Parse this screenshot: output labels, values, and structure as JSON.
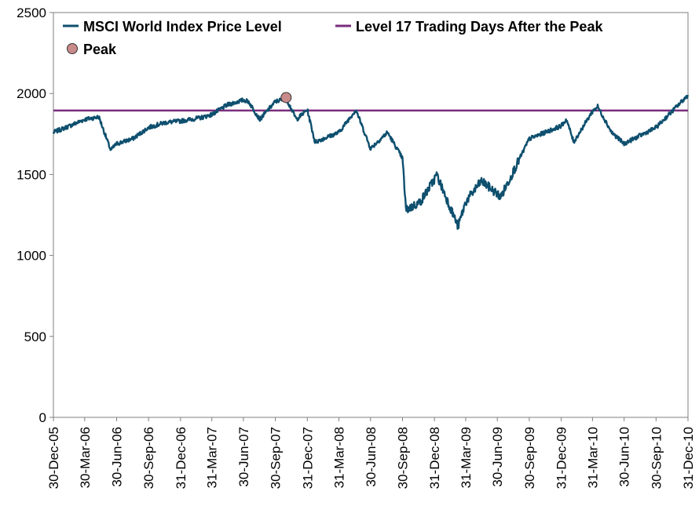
{
  "chart_data": {
    "type": "line",
    "title": "",
    "xlabel": "",
    "ylabel": "",
    "ylim": [
      0,
      2500
    ],
    "yticks": [
      0,
      500,
      1000,
      1500,
      2000,
      2500
    ],
    "x_ticks": [
      "30-Dec-05",
      "30-Mar-06",
      "30-Jun-06",
      "30-Sep-06",
      "31-Dec-06",
      "31-Mar-07",
      "30-Jun-07",
      "30-Sep-07",
      "31-Dec-07",
      "31-Mar-08",
      "30-Jun-08",
      "30-Sep-08",
      "31-Dec-08",
      "31-Mar-09",
      "30-Jun-09",
      "30-Sep-09",
      "31-Dec-09",
      "31-Mar-10",
      "30-Jun-10",
      "30-Sep-10",
      "31-Dec-10"
    ],
    "grid": false,
    "legend_position": "top-left",
    "colors": {
      "index": "#0e4f6e",
      "level": "#7a2e7e",
      "peak": "#c98a8a"
    },
    "series": [
      {
        "name": "MSCI World Index Price Level",
        "type": "line",
        "x": [
          "30-Dec-05",
          "15-Feb-06",
          "30-Mar-06",
          "10-May-06",
          "13-Jun-06",
          "30-Jun-06",
          "15-Aug-06",
          "30-Sep-06",
          "15-Nov-06",
          "31-Dec-06",
          "27-Feb-07",
          "31-Mar-07",
          "15-May-07",
          "30-Jun-07",
          "15-Jul-07",
          "16-Aug-07",
          "30-Sep-07",
          "31-Oct-07",
          "30-Nov-07",
          "31-Dec-07",
          "22-Jan-08",
          "31-Mar-08",
          "19-May-08",
          "30-Jun-08",
          "18-Aug-08",
          "30-Sep-08",
          "10-Oct-08",
          "20-Nov-08",
          "31-Dec-08",
          "06-Jan-09",
          "09-Mar-09",
          "31-Mar-09",
          "15-May-09",
          "30-Jun-09",
          "10-Jul-09",
          "30-Sep-09",
          "31-Dec-09",
          "15-Jan-10",
          "05-Feb-10",
          "31-Mar-10",
          "15-Apr-10",
          "25-May-10",
          "30-Jun-10",
          "30-Sep-10",
          "31-Dec-10"
        ],
        "values": [
          1760,
          1800,
          1840,
          1855,
          1650,
          1690,
          1720,
          1790,
          1820,
          1830,
          1850,
          1870,
          1930,
          1960,
          1950,
          1840,
          1950,
          1970,
          1840,
          1900,
          1700,
          1760,
          1900,
          1660,
          1760,
          1600,
          1280,
          1330,
          1470,
          1500,
          1180,
          1330,
          1460,
          1380,
          1360,
          1720,
          1800,
          1840,
          1700,
          1890,
          1920,
          1760,
          1690,
          1790,
          1990
        ]
      },
      {
        "name": "Level 17 Trading Days After the Peak",
        "type": "hline",
        "value": 1895
      },
      {
        "name": "Peak",
        "type": "point",
        "x": "31-Oct-07",
        "value": 1975
      }
    ]
  }
}
